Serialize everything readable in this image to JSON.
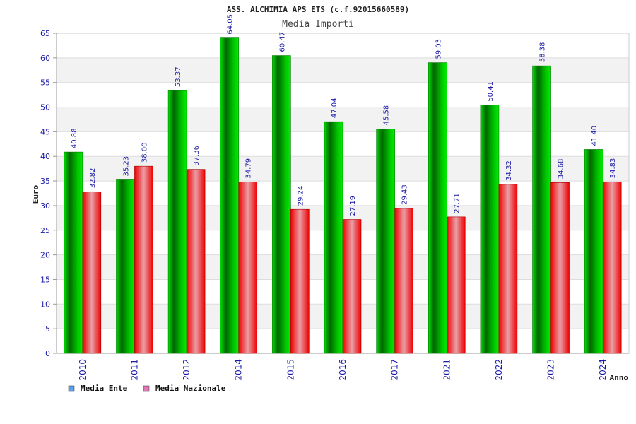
{
  "chart_data": {
    "type": "bar",
    "title": "ASS. ALCHIMIA APS ETS (c.f.92015660589)",
    "subtitle": "Media Importi",
    "xlabel": "Anno",
    "ylabel": "Euro",
    "ylim": [
      0,
      65
    ],
    "yticks": [
      0,
      5,
      10,
      15,
      20,
      25,
      30,
      35,
      40,
      45,
      50,
      55,
      60,
      65
    ],
    "grid": true,
    "legend_position": "bottom-left",
    "categories": [
      "2010",
      "2011",
      "2012",
      "2014",
      "2015",
      "2016",
      "2017",
      "2021",
      "2022",
      "2023",
      "2024"
    ],
    "series": [
      {
        "name": "Media Ente",
        "color": "#00cc00",
        "legend_color": "#5aa0f0",
        "values": [
          40.88,
          35.23,
          53.37,
          64.05,
          60.47,
          47.04,
          45.58,
          59.03,
          50.41,
          58.38,
          41.4
        ],
        "labels": [
          "40.88",
          "35.23",
          "53.37",
          "64.05",
          "60.47",
          "47.04",
          "45.58",
          "59.03",
          "50.41",
          "58.38",
          "41.40"
        ]
      },
      {
        "name": "Media Nazionale",
        "color": "#ff2222",
        "legend_color": "#e078b8",
        "values": [
          32.82,
          38.0,
          37.36,
          34.79,
          29.24,
          27.19,
          29.43,
          27.71,
          34.32,
          34.68,
          34.83
        ],
        "labels": [
          "32.82",
          "38.00",
          "37.36",
          "34.79",
          "29.24",
          "27.19",
          "29.43",
          "27.71",
          "34.32",
          "34.68",
          "34.83"
        ]
      }
    ]
  }
}
